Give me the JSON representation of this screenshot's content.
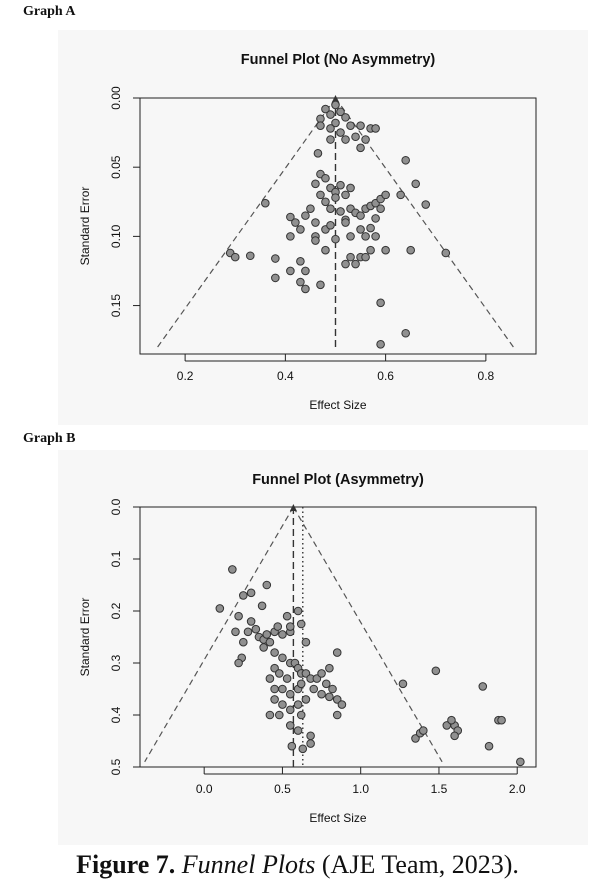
{
  "graph_labels": [
    "Graph A",
    "Graph B"
  ],
  "caption": {
    "figure": "Figure 7.",
    "title": "Funnel Plots",
    "source": "(AJE Team, 2023)."
  },
  "colors": {
    "point_fill": "#909090",
    "point_stroke": "#333333",
    "line": "#555555"
  },
  "chart_data": [
    {
      "type": "scatter",
      "title": "Funnel Plot (No Asymmetry)",
      "xlabel": "Effect Size",
      "ylabel": "Standard Error",
      "xlim": [
        0.11,
        0.9
      ],
      "ylim": [
        0.0,
        0.185
      ],
      "y_reversed": true,
      "xticks": [
        0.2,
        0.4,
        0.6,
        0.8
      ],
      "xtick_labels": [
        "0.2",
        "0.4",
        "0.6",
        "0.8"
      ],
      "yticks": [
        0.0,
        0.05,
        0.1,
        0.15
      ],
      "ytick_labels": [
        "0.00",
        "0.05",
        "0.10",
        "0.15"
      ],
      "grid": false,
      "funnel_apex": [
        0.5,
        0.0
      ],
      "funnel_lines": [
        {
          "x": [
            0.5,
            0.145
          ],
          "y": [
            0.0,
            0.18
          ]
        },
        {
          "x": [
            0.5,
            0.855
          ],
          "y": [
            0.0,
            0.18
          ]
        }
      ],
      "reference_lines": [
        {
          "style": "dashed",
          "x": 0.5,
          "y": [
            0.0,
            0.18
          ]
        }
      ],
      "points": [
        [
          0.47,
          0.015
        ],
        [
          0.48,
          0.008
        ],
        [
          0.49,
          0.012
        ],
        [
          0.5,
          0.018
        ],
        [
          0.51,
          0.01
        ],
        [
          0.52,
          0.014
        ],
        [
          0.53,
          0.02
        ],
        [
          0.49,
          0.022
        ],
        [
          0.47,
          0.02
        ],
        [
          0.51,
          0.025
        ],
        [
          0.52,
          0.03
        ],
        [
          0.55,
          0.02
        ],
        [
          0.56,
          0.03
        ],
        [
          0.57,
          0.022
        ],
        [
          0.54,
          0.028
        ],
        [
          0.58,
          0.022
        ],
        [
          0.5,
          0.005
        ],
        [
          0.49,
          0.03
        ],
        [
          0.465,
          0.04
        ],
        [
          0.55,
          0.036
        ],
        [
          0.47,
          0.055
        ],
        [
          0.48,
          0.058
        ],
        [
          0.46,
          0.062
        ],
        [
          0.49,
          0.065
        ],
        [
          0.5,
          0.068
        ],
        [
          0.51,
          0.063
        ],
        [
          0.53,
          0.065
        ],
        [
          0.47,
          0.07
        ],
        [
          0.48,
          0.075
        ],
        [
          0.49,
          0.08
        ],
        [
          0.5,
          0.072
        ],
        [
          0.52,
          0.07
        ],
        [
          0.53,
          0.08
        ],
        [
          0.51,
          0.082
        ],
        [
          0.54,
          0.083
        ],
        [
          0.45,
          0.08
        ],
        [
          0.44,
          0.085
        ],
        [
          0.46,
          0.09
        ],
        [
          0.48,
          0.095
        ],
        [
          0.52,
          0.088
        ],
        [
          0.55,
          0.085
        ],
        [
          0.56,
          0.08
        ],
        [
          0.57,
          0.078
        ],
        [
          0.58,
          0.076
        ],
        [
          0.59,
          0.073
        ],
        [
          0.6,
          0.07
        ],
        [
          0.59,
          0.08
        ],
        [
          0.52,
          0.09
        ],
        [
          0.49,
          0.092
        ],
        [
          0.41,
          0.086
        ],
        [
          0.42,
          0.09
        ],
        [
          0.43,
          0.095
        ],
        [
          0.41,
          0.1
        ],
        [
          0.46,
          0.1
        ],
        [
          0.5,
          0.102
        ],
        [
          0.53,
          0.1
        ],
        [
          0.56,
          0.1
        ],
        [
          0.55,
          0.095
        ],
        [
          0.57,
          0.094
        ],
        [
          0.58,
          0.1
        ],
        [
          0.63,
          0.07
        ],
        [
          0.66,
          0.062
        ],
        [
          0.68,
          0.077
        ],
        [
          0.64,
          0.045
        ],
        [
          0.6,
          0.11
        ],
        [
          0.57,
          0.11
        ],
        [
          0.55,
          0.115
        ],
        [
          0.53,
          0.115
        ],
        [
          0.48,
          0.11
        ],
        [
          0.46,
          0.103
        ],
        [
          0.58,
          0.087
        ],
        [
          0.29,
          0.112
        ],
        [
          0.3,
          0.115
        ],
        [
          0.33,
          0.114
        ],
        [
          0.36,
          0.076
        ],
        [
          0.38,
          0.116
        ],
        [
          0.41,
          0.125
        ],
        [
          0.43,
          0.118
        ],
        [
          0.44,
          0.125
        ],
        [
          0.43,
          0.133
        ],
        [
          0.44,
          0.138
        ],
        [
          0.47,
          0.135
        ],
        [
          0.38,
          0.13
        ],
        [
          0.52,
          0.12
        ],
        [
          0.54,
          0.12
        ],
        [
          0.56,
          0.115
        ],
        [
          0.65,
          0.11
        ],
        [
          0.72,
          0.112
        ],
        [
          0.59,
          0.148
        ],
        [
          0.64,
          0.17
        ],
        [
          0.59,
          0.178
        ]
      ]
    },
    {
      "type": "scatter",
      "title": "Funnel Plot (Asymmetry)",
      "xlabel": "Effect Size",
      "ylabel": "Standard Error",
      "xlim": [
        -0.41,
        2.12
      ],
      "ylim": [
        0.0,
        0.5
      ],
      "y_reversed": true,
      "xticks": [
        0.0,
        0.5,
        1.0,
        1.5,
        2.0
      ],
      "xtick_labels": [
        "0.0",
        "0.5",
        "1.0",
        "1.5",
        "2.0"
      ],
      "yticks": [
        0.0,
        0.1,
        0.2,
        0.3,
        0.4,
        0.5
      ],
      "ytick_labels": [
        "0.0",
        "0.1",
        "0.2",
        "0.3",
        "0.4",
        "0.5"
      ],
      "grid": false,
      "funnel_apex": [
        0.57,
        0.0
      ],
      "funnel_lines": [
        {
          "x": [
            0.57,
            -0.38
          ],
          "y": [
            0.0,
            0.49
          ]
        },
        {
          "x": [
            0.57,
            1.52
          ],
          "y": [
            0.0,
            0.49
          ]
        }
      ],
      "reference_lines": [
        {
          "style": "dashed",
          "x": 0.57,
          "y": [
            0.0,
            0.5
          ]
        },
        {
          "style": "dotted",
          "x": 0.63,
          "y": [
            0.0,
            0.5
          ]
        }
      ],
      "points": [
        [
          0.18,
          0.12
        ],
        [
          0.1,
          0.195
        ],
        [
          0.25,
          0.17
        ],
        [
          0.3,
          0.165
        ],
        [
          0.37,
          0.19
        ],
        [
          0.4,
          0.15
        ],
        [
          0.2,
          0.24
        ],
        [
          0.22,
          0.21
        ],
        [
          0.25,
          0.26
        ],
        [
          0.24,
          0.29
        ],
        [
          0.22,
          0.3
        ],
        [
          0.28,
          0.24
        ],
        [
          0.3,
          0.22
        ],
        [
          0.33,
          0.235
        ],
        [
          0.35,
          0.25
        ],
        [
          0.38,
          0.255
        ],
        [
          0.4,
          0.245
        ],
        [
          0.42,
          0.26
        ],
        [
          0.45,
          0.24
        ],
        [
          0.47,
          0.23
        ],
        [
          0.5,
          0.245
        ],
        [
          0.53,
          0.21
        ],
        [
          0.55,
          0.24
        ],
        [
          0.6,
          0.2
        ],
        [
          0.62,
          0.225
        ],
        [
          0.65,
          0.26
        ],
        [
          0.55,
          0.23
        ],
        [
          0.38,
          0.27
        ],
        [
          0.45,
          0.28
        ],
        [
          0.5,
          0.29
        ],
        [
          0.55,
          0.3
        ],
        [
          0.58,
          0.3
        ],
        [
          0.6,
          0.31
        ],
        [
          0.62,
          0.32
        ],
        [
          0.45,
          0.31
        ],
        [
          0.48,
          0.32
        ],
        [
          0.53,
          0.33
        ],
        [
          0.42,
          0.33
        ],
        [
          0.45,
          0.35
        ],
        [
          0.5,
          0.35
        ],
        [
          0.55,
          0.36
        ],
        [
          0.6,
          0.35
        ],
        [
          0.62,
          0.34
        ],
        [
          0.65,
          0.32
        ],
        [
          0.68,
          0.33
        ],
        [
          0.72,
          0.33
        ],
        [
          0.75,
          0.32
        ],
        [
          0.78,
          0.34
        ],
        [
          0.8,
          0.31
        ],
        [
          0.85,
          0.28
        ],
        [
          0.82,
          0.35
        ],
        [
          0.7,
          0.35
        ],
        [
          0.75,
          0.36
        ],
        [
          0.8,
          0.365
        ],
        [
          0.85,
          0.37
        ],
        [
          0.88,
          0.38
        ],
        [
          0.45,
          0.37
        ],
        [
          0.5,
          0.38
        ],
        [
          0.55,
          0.39
        ],
        [
          0.6,
          0.38
        ],
        [
          0.65,
          0.37
        ],
        [
          0.48,
          0.4
        ],
        [
          0.42,
          0.4
        ],
        [
          0.62,
          0.4
        ],
        [
          0.85,
          0.4
        ],
        [
          0.55,
          0.42
        ],
        [
          0.6,
          0.43
        ],
        [
          0.68,
          0.44
        ],
        [
          0.56,
          0.46
        ],
        [
          0.63,
          0.465
        ],
        [
          0.68,
          0.455
        ],
        [
          1.27,
          0.34
        ],
        [
          1.48,
          0.315
        ],
        [
          1.35,
          0.445
        ],
        [
          1.38,
          0.435
        ],
        [
          1.4,
          0.43
        ],
        [
          1.55,
          0.42
        ],
        [
          1.6,
          0.42
        ],
        [
          1.58,
          0.41
        ],
        [
          1.62,
          0.43
        ],
        [
          1.6,
          0.44
        ],
        [
          1.78,
          0.345
        ],
        [
          1.88,
          0.41
        ],
        [
          1.9,
          0.41
        ],
        [
          1.82,
          0.46
        ],
        [
          2.02,
          0.49
        ]
      ]
    }
  ]
}
